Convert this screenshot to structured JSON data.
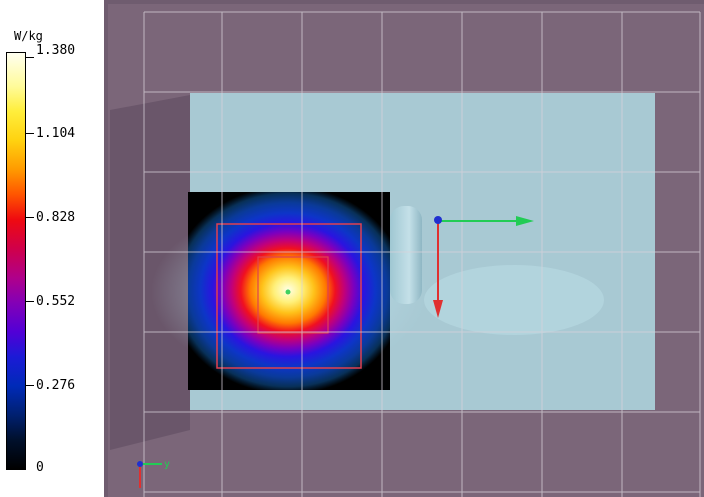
{
  "legend": {
    "unit": "W/kg",
    "ticks": [
      "1.380",
      "1.104",
      "0.828",
      "0.552",
      "0.276",
      "0"
    ]
  },
  "viewport": {
    "axis_labels": {
      "y": "y"
    },
    "colors": {
      "outer_box": "#7a6478",
      "phantom": "#a6c9d4",
      "grid": "#c9c3cc",
      "x_axis_arrow": "#22cc55",
      "z_axis_arrow": "#e03030",
      "origin_marker": "#2030d0",
      "measurement_frame": "#e04050"
    }
  }
}
